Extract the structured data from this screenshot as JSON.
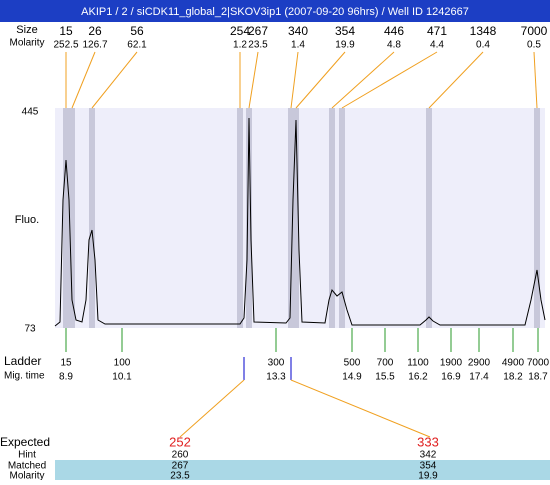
{
  "title": "AKIP1 / 2 / siCDK11_global_2|SKOV3ip1 (2007-09-20 96hrs) / Well ID 1242667",
  "peaks": {
    "size_label": "Size",
    "molarity_label": "Molarity",
    "items": [
      {
        "size": 15,
        "molarity": 252.5
      },
      {
        "size": 26,
        "molarity": 126.7
      },
      {
        "size": 56,
        "molarity": 62.1
      },
      {
        "size": 254,
        "molarity": 1.2
      },
      {
        "size": 267,
        "molarity": 23.5
      },
      {
        "size": 340,
        "molarity": 1.4
      },
      {
        "size": 354,
        "molarity": 19.9
      },
      {
        "size": 446,
        "molarity": 4.8
      },
      {
        "size": 471,
        "molarity": 4.4
      },
      {
        "size": 1348,
        "molarity": 0.4
      },
      {
        "size": 7000,
        "molarity": 0.5
      }
    ]
  },
  "fluo": {
    "label": "Fluo.",
    "max": 445,
    "min": 73
  },
  "ladder": {
    "label": "Ladder",
    "mig_label": "Mig. time",
    "items": [
      {
        "size": 15,
        "mig": 8.9
      },
      {
        "size": 100,
        "mig": 10.1
      },
      {
        "size": 300,
        "mig": 13.3
      },
      {
        "size": 500,
        "mig": 14.9
      },
      {
        "size": 700,
        "mig": 15.5
      },
      {
        "size": 1100,
        "mig": 16.2
      },
      {
        "size": 1900,
        "mig": 16.9
      },
      {
        "size": 2900,
        "mig": 17.4
      },
      {
        "size": 4900,
        "mig": 18.2
      },
      {
        "size": 7000,
        "mig": 18.7
      }
    ]
  },
  "expected": {
    "label": "Expected",
    "hint_label": "Hint",
    "matched_label": "Matched",
    "molarity_label": "Molarity",
    "items": [
      {
        "expected": 252,
        "hint": 260,
        "matched": 267,
        "molarity": 23.5
      },
      {
        "expected": 333,
        "hint": 342,
        "matched": 354,
        "molarity": 19.9
      }
    ]
  }
}
